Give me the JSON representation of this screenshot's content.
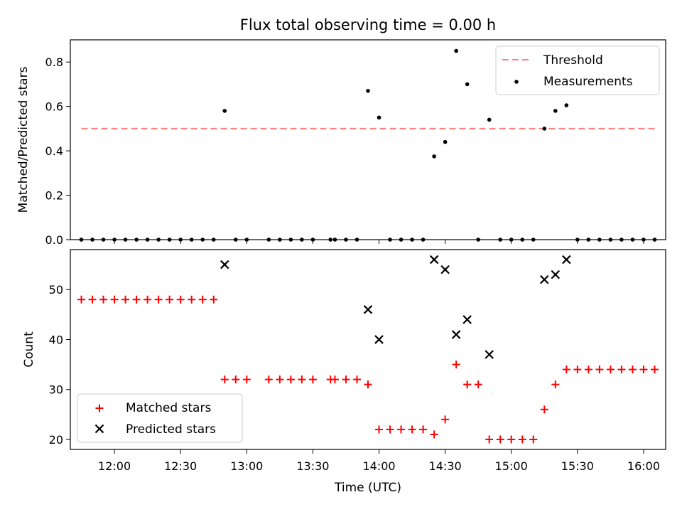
{
  "chart_data": [
    {
      "type": "scatter",
      "title": "Flux total observing time = 0.00 h",
      "xlabel": "",
      "ylabel": "Matched/Predicted stars",
      "ylim": [
        0,
        0.9
      ],
      "yticks": [
        0.0,
        0.2,
        0.4,
        0.6,
        0.8
      ],
      "ytick_labels": [
        "0.0",
        "0.2",
        "0.4",
        "0.6",
        "0.8"
      ],
      "xlim": [
        "11:40",
        "16:10"
      ],
      "legend": {
        "position": "top-right",
        "entries": [
          "Threshold",
          "Measurements"
        ]
      },
      "threshold": {
        "name": "Threshold",
        "value": 0.5,
        "x_start": "11:45",
        "x_end": "16:05",
        "color": "#ff7f7f"
      },
      "series": [
        {
          "name": "Measurements",
          "marker": "dot",
          "color": "#000000",
          "points": [
            [
              "11:45",
              0
            ],
            [
              "11:50",
              0
            ],
            [
              "11:55",
              0
            ],
            [
              "12:00",
              0
            ],
            [
              "12:05",
              0
            ],
            [
              "12:10",
              0
            ],
            [
              "12:15",
              0
            ],
            [
              "12:20",
              0
            ],
            [
              "12:25",
              0
            ],
            [
              "12:30",
              0
            ],
            [
              "12:35",
              0
            ],
            [
              "12:40",
              0
            ],
            [
              "12:45",
              0
            ],
            [
              "12:50",
              0.58
            ],
            [
              "12:55",
              0
            ],
            [
              "13:00",
              0
            ],
            [
              "13:10",
              0
            ],
            [
              "13:15",
              0
            ],
            [
              "13:20",
              0
            ],
            [
              "13:25",
              0
            ],
            [
              "13:30",
              0
            ],
            [
              "13:38",
              0
            ],
            [
              "13:40",
              0
            ],
            [
              "13:45",
              0
            ],
            [
              "13:50",
              0
            ],
            [
              "13:55",
              0.67
            ],
            [
              "14:00",
              0.55
            ],
            [
              "14:05",
              0
            ],
            [
              "14:10",
              0
            ],
            [
              "14:15",
              0
            ],
            [
              "14:20",
              0
            ],
            [
              "14:25",
              0.375
            ],
            [
              "14:30",
              0.44
            ],
            [
              "14:35",
              0.85
            ],
            [
              "14:40",
              0.7
            ],
            [
              "14:45",
              0
            ],
            [
              "14:50",
              0.54
            ],
            [
              "14:55",
              0
            ],
            [
              "15:00",
              0
            ],
            [
              "15:05",
              0
            ],
            [
              "15:10",
              0
            ],
            [
              "15:15",
              0.5
            ],
            [
              "15:20",
              0.58
            ],
            [
              "15:25",
              0.605
            ],
            [
              "15:30",
              0
            ],
            [
              "15:35",
              0
            ],
            [
              "15:40",
              0
            ],
            [
              "15:45",
              0
            ],
            [
              "15:50",
              0
            ],
            [
              "15:55",
              0
            ],
            [
              "16:00",
              0
            ],
            [
              "16:05",
              0
            ]
          ]
        }
      ]
    },
    {
      "type": "scatter",
      "title": "",
      "xlabel": "Time (UTC)",
      "ylabel": "Count",
      "ylim": [
        18,
        58
      ],
      "yticks": [
        20,
        30,
        40,
        50
      ],
      "ytick_labels": [
        "20",
        "30",
        "40",
        "50"
      ],
      "xlim": [
        "11:40",
        "16:10"
      ],
      "xticks": [
        "12:00",
        "12:30",
        "13:00",
        "13:30",
        "14:00",
        "14:30",
        "15:00",
        "15:30",
        "16:00"
      ],
      "xtick_labels": [
        "12:00",
        "12:30",
        "13:00",
        "13:30",
        "14:00",
        "14:30",
        "15:00",
        "15:30",
        "16:00"
      ],
      "legend": {
        "position": "lower-left",
        "entries": [
          "Matched stars",
          "Predicted stars"
        ]
      },
      "series": [
        {
          "name": "Matched stars",
          "marker": "plus",
          "color": "#ff0000",
          "points": [
            [
              "11:45",
              48
            ],
            [
              "11:50",
              48
            ],
            [
              "11:55",
              48
            ],
            [
              "12:00",
              48
            ],
            [
              "12:05",
              48
            ],
            [
              "12:10",
              48
            ],
            [
              "12:15",
              48
            ],
            [
              "12:20",
              48
            ],
            [
              "12:25",
              48
            ],
            [
              "12:30",
              48
            ],
            [
              "12:35",
              48
            ],
            [
              "12:40",
              48
            ],
            [
              "12:45",
              48
            ],
            [
              "12:50",
              32
            ],
            [
              "12:55",
              32
            ],
            [
              "13:00",
              32
            ],
            [
              "13:10",
              32
            ],
            [
              "13:15",
              32
            ],
            [
              "13:20",
              32
            ],
            [
              "13:25",
              32
            ],
            [
              "13:30",
              32
            ],
            [
              "13:38",
              32
            ],
            [
              "13:40",
              32
            ],
            [
              "13:45",
              32
            ],
            [
              "13:50",
              32
            ],
            [
              "13:55",
              31
            ],
            [
              "14:00",
              22
            ],
            [
              "14:05",
              22
            ],
            [
              "14:10",
              22
            ],
            [
              "14:15",
              22
            ],
            [
              "14:20",
              22
            ],
            [
              "14:25",
              21
            ],
            [
              "14:30",
              24
            ],
            [
              "14:35",
              35
            ],
            [
              "14:40",
              31
            ],
            [
              "14:45",
              31
            ],
            [
              "14:50",
              20
            ],
            [
              "14:55",
              20
            ],
            [
              "15:00",
              20
            ],
            [
              "15:05",
              20
            ],
            [
              "15:10",
              20
            ],
            [
              "15:15",
              26
            ],
            [
              "15:20",
              31
            ],
            [
              "15:25",
              34
            ],
            [
              "15:30",
              34
            ],
            [
              "15:35",
              34
            ],
            [
              "15:40",
              34
            ],
            [
              "15:45",
              34
            ],
            [
              "15:50",
              34
            ],
            [
              "15:55",
              34
            ],
            [
              "16:00",
              34
            ],
            [
              "16:05",
              34
            ]
          ]
        },
        {
          "name": "Predicted stars",
          "marker": "x",
          "color": "#000000",
          "points": [
            [
              "12:50",
              55
            ],
            [
              "13:55",
              46
            ],
            [
              "14:00",
              40
            ],
            [
              "14:25",
              56
            ],
            [
              "14:30",
              54
            ],
            [
              "14:35",
              41
            ],
            [
              "14:40",
              44
            ],
            [
              "14:50",
              37
            ],
            [
              "15:15",
              52
            ],
            [
              "15:20",
              53
            ],
            [
              "15:25",
              56
            ]
          ]
        }
      ]
    }
  ]
}
